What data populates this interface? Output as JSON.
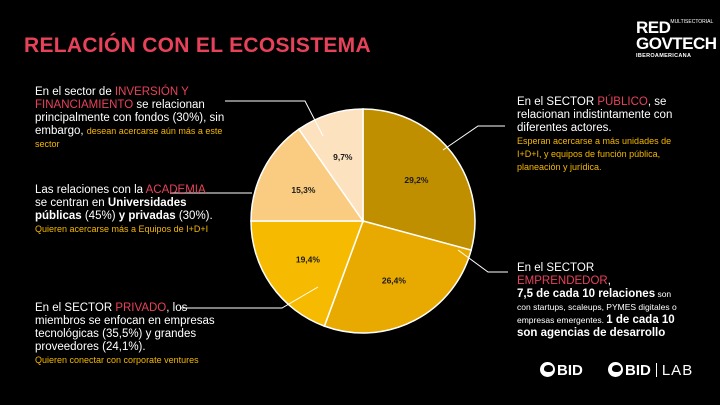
{
  "title": "RELACIÓN CON EL ECOSISTEMA",
  "logo": {
    "line1": "RED",
    "line1_small": "MULTISECTORIAL",
    "line2": "GOVTECH",
    "line3": "IBEROAMERICANA"
  },
  "chart_data": {
    "type": "pie",
    "slices": [
      {
        "label": "29,2%",
        "value": 29.2,
        "sector": "Público",
        "color": "#c08f00"
      },
      {
        "label": "26,4%",
        "value": 26.4,
        "sector": "Emprendedor",
        "color": "#e8a900"
      },
      {
        "label": "19,4%",
        "value": 19.4,
        "sector": "Privado",
        "color": "#f6bb00"
      },
      {
        "label": "15,3%",
        "value": 15.3,
        "sector": "Academia",
        "color": "#f9cc82"
      },
      {
        "label": "9,7%",
        "value": 9.7,
        "sector": "Inversión y financiamiento",
        "color": "#fde2c0"
      }
    ]
  },
  "annotations": {
    "inversion": {
      "t1": "En el sector de ",
      "hl": "INVERSIÓN Y FINANCIAMIENTO",
      "t2": " se relacionan principalmente con fondos (30%), sin embargo, ",
      "y": "desean acercarse aún más a este sector"
    },
    "academia": {
      "t1": "Las relaciones con la ",
      "hl": "ACADEMIA",
      "t2": " se centran en ",
      "b1": "Universidades públicas",
      "t3": " (45%) ",
      "b2": "y privadas",
      "t4": " (30%). ",
      "y": "Quieren acercarse más a Equipos de I+D+I"
    },
    "privado": {
      "t1": "En el SECTOR ",
      "hl": "PRIVADO",
      "t2": ", los miembros se enfocan en empresas tecnológicas (35,5%) y grandes proveedores (24,1%).",
      "y": "Quieren conectar con corporate ventures"
    },
    "publico": {
      "t1": "En el SECTOR ",
      "hl": "PÚBLICO",
      "t2": ", se relacionan indistintamente con diferentes actores.",
      "y": "Esperan acercarse a más unidades de I+D+I, y equipos de función pública, planeación y jurídica."
    },
    "emprendedor": {
      "t1": "En el SECTOR ",
      "hl": "EMPRENDEDOR",
      "t2": ",",
      "b1": "7,5 de cada 10 relaciones",
      "s1": " son con startups, scaleups, PYMES digitales o empresas emergentes. ",
      "b2": "1 de cada 10 son agencias de desarrollo"
    }
  },
  "footer": {
    "bid": "BID",
    "bid_lab_1": "BID",
    "bid_lab_2": "LAB"
  }
}
